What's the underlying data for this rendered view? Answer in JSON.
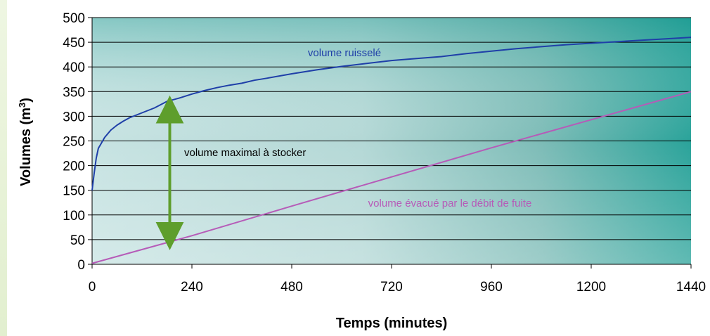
{
  "chart_data": {
    "type": "line",
    "xlabel": "Temps (minutes)",
    "ylabel": "Volumes (m",
    "ylabel_sup": "3",
    "ylabel_end": ")",
    "xlim": [
      0,
      1440
    ],
    "ylim": [
      0,
      500
    ],
    "xticks": [
      0,
      240,
      480,
      720,
      960,
      1200,
      1440
    ],
    "yticks": [
      0,
      50,
      100,
      150,
      200,
      250,
      300,
      350,
      400,
      450,
      500
    ],
    "grid": "horizontal",
    "series": [
      {
        "name": "volume ruisselé",
        "color": "#1f3fa8",
        "x": [
          0,
          5,
          10,
          15,
          20,
          30,
          45,
          60,
          75,
          90,
          105,
          120,
          150,
          180,
          210,
          240,
          270,
          300,
          330,
          360,
          390,
          420,
          480,
          540,
          600,
          660,
          720,
          780,
          840,
          900,
          960,
          1020,
          1080,
          1140,
          1200,
          1260,
          1320,
          1380,
          1440
        ],
        "values": [
          150,
          185,
          215,
          235,
          242,
          257,
          272,
          282,
          290,
          297,
          302,
          307,
          317,
          330,
          337,
          345,
          352,
          358,
          363,
          367,
          373,
          377,
          386,
          394,
          401,
          407,
          413,
          417,
          421,
          427,
          432,
          437,
          441,
          445,
          448,
          451,
          454,
          457,
          460
        ]
      },
      {
        "name": "volume évacué par le débit de fuite",
        "color": "#b65bb8",
        "x": [
          0,
          240,
          480,
          720,
          960,
          1200,
          1440
        ],
        "values": [
          2,
          58,
          118,
          177,
          236,
          293,
          350
        ]
      }
    ],
    "annotation": {
      "text": "volume maximal à stocker",
      "arrow_x": 180,
      "arrow_from": 328,
      "arrow_to": 43,
      "color": "#5e9e2c"
    }
  }
}
